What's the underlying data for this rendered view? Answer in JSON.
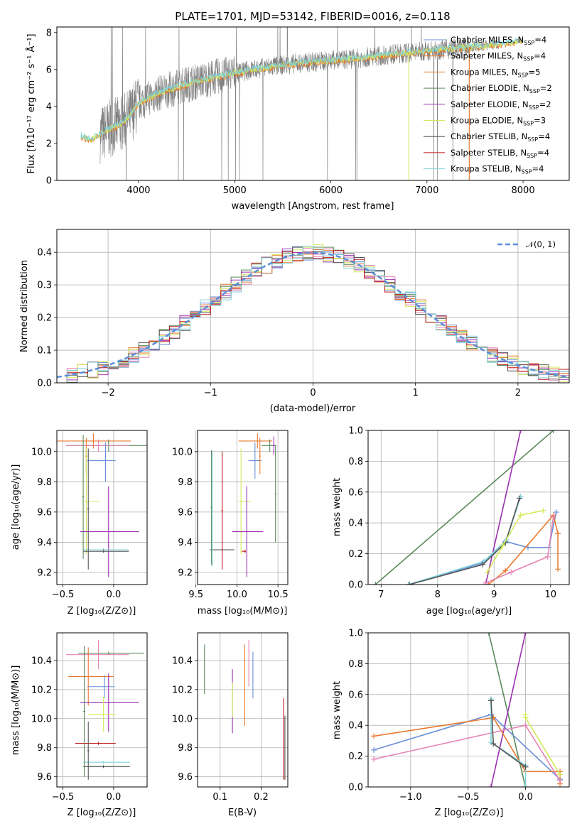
{
  "colors": {
    "chabrier_miles": "#6a8fd9",
    "salpeter_miles": "#e87a2f",
    "kroupa_miles": "#e87a2f",
    "chabrier_elodie": "#5b8a5b",
    "salpeter_elodie": "#9b30b0",
    "kroupa_elodie": "#d4e85a",
    "chabrier_stelib": "#555555",
    "salpeter_stelib": "#c01818",
    "kroupa_stelib": "#7fd3dc",
    "pink": "#e585b5",
    "data": "#808080",
    "normal": "#5b8ed6"
  },
  "chart_data": [
    {
      "id": "spectrum",
      "type": "line",
      "title": "PLATE=1701, MJD=53142, FIBERID=0016, z=0.118",
      "xlabel": "wavelength [Angstrom, rest frame]",
      "ylabel": "Flux [fλ10⁻¹⁷ erg cm⁻² s⁻¹ Å⁻¹]",
      "xlim": [
        3150,
        8480
      ],
      "ylim": [
        0,
        8.3
      ],
      "xticks": [
        4000,
        5000,
        6000,
        7000,
        8000
      ],
      "yticks": [
        0,
        2,
        4,
        6,
        8
      ],
      "legend_position": "upper right",
      "legend": [
        {
          "label": "Chabrier MILES, N_SSP=4",
          "color_key": "chabrier_miles"
        },
        {
          "label": "Salpeter MILES, N_SSP=4",
          "color_key": "salpeter_miles"
        },
        {
          "label": "Kroupa MILES, N_SSP=5",
          "color_key": "kroupa_miles"
        },
        {
          "label": "Chabrier ELODIE, N_SSP=2",
          "color_key": "chabrier_elodie"
        },
        {
          "label": "Salpeter ELODIE, N_SSP=2",
          "color_key": "salpeter_elodie"
        },
        {
          "label": "Kroupa ELODIE, N_SSP=3",
          "color_key": "kroupa_elodie"
        },
        {
          "label": "Chabrier STELIB, N_SSP=4",
          "color_key": "chabrier_stelib"
        },
        {
          "label": "Salpeter STELIB, N_SSP=4",
          "color_key": "salpeter_stelib"
        },
        {
          "label": "Kroupa STELIB, N_SSP=4",
          "color_key": "kroupa_stelib"
        }
      ],
      "continuum": {
        "x": [
          3400,
          3500,
          3600,
          3700,
          3800,
          3900,
          4000,
          4200,
          4500,
          4800,
          5000,
          5300,
          5600,
          6000,
          6300,
          6600,
          7000,
          7400,
          7800,
          8000
        ],
        "y": [
          2.4,
          2.2,
          2.5,
          2.8,
          3.0,
          3.4,
          4.2,
          4.7,
          5.2,
          5.6,
          5.8,
          6.1,
          6.3,
          6.5,
          6.6,
          6.8,
          7.0,
          7.2,
          7.4,
          7.6
        ]
      },
      "model_end": [
        3400,
        8000
      ],
      "data_range": [
        3600,
        7440
      ]
    },
    {
      "id": "residuals",
      "type": "bar",
      "xlabel": "(data-model)/error",
      "ylabel": "Normed distribution",
      "xlim": [
        -2.5,
        2.5
      ],
      "ylim": [
        0,
        0.47
      ],
      "xticks": [
        -2,
        -1,
        0,
        1,
        2
      ],
      "yticks": [
        0.0,
        0.1,
        0.2,
        0.3,
        0.4
      ],
      "legend": [
        {
          "label": "𝒩(0, 1)",
          "color_key": "normal"
        }
      ],
      "bin_width": 0.1,
      "bin_start": -2.5,
      "series_count": 9
    },
    {
      "id": "age_vs_Z",
      "type": "scatter",
      "xlabel": "Z [log₁₀(Z/Z⊙)]",
      "ylabel": "age  [log₁₀(age/yr)]",
      "xlim": [
        -0.56,
        0.33
      ],
      "ylim": [
        9.12,
        10.14
      ],
      "xticks": [
        -0.5,
        0.0
      ],
      "yticks": [
        9.2,
        9.4,
        9.6,
        9.8,
        10.0
      ],
      "points": [
        {
          "x": -0.2,
          "y": 10.07,
          "xerr": [
            0.42,
            0.37
          ],
          "yerr": [
            0.05,
            0.05
          ],
          "color_key": "salpeter_miles"
        },
        {
          "x": -0.05,
          "y": 10.04,
          "xerr": [
            0.42,
            0.38
          ],
          "yerr": [
            0.04,
            0.04
          ],
          "color_key": "chabrier_elodie"
        },
        {
          "x": -0.15,
          "y": 10.04,
          "xerr": [
            0.32,
            0.3
          ],
          "yerr": [
            0.04,
            0.04
          ],
          "color_key": "pink"
        },
        {
          "x": -0.08,
          "y": 9.94,
          "xerr": [
            0.18,
            0.1
          ],
          "yerr": [
            0.14,
            0.12
          ],
          "color_key": "chabrier_miles"
        },
        {
          "x": -0.27,
          "y": 9.97,
          "xerr": [
            0.01,
            0.01
          ],
          "yerr": [
            0.12,
            0.12
          ],
          "color_key": "kroupa_miles"
        },
        {
          "x": -0.27,
          "y": 9.67,
          "xerr": [
            0.02,
            0.13
          ],
          "yerr": [
            0.35,
            0.35
          ],
          "color_key": "kroupa_elodie"
        },
        {
          "x": -0.05,
          "y": 9.47,
          "xerr": [
            0.28,
            0.3
          ],
          "yerr": [
            0.3,
            0.3
          ],
          "color_key": "salpeter_elodie"
        },
        {
          "x": -0.1,
          "y": 9.35,
          "xerr": [
            0.2,
            0.25
          ],
          "yerr": [
            0.01,
            0.01
          ],
          "color_key": "kroupa_stelib"
        },
        {
          "x": -0.1,
          "y": 9.34,
          "xerr": [
            0.2,
            0.25
          ],
          "yerr": [
            0.01,
            0.01
          ],
          "color_key": "chabrier_stelib"
        },
        {
          "x": -0.3,
          "y": 9.7,
          "xerr": [
            0.01,
            0.01
          ],
          "yerr": [
            0.41,
            0.41
          ],
          "color_key": "chabrier_elodie"
        },
        {
          "x": -0.25,
          "y": 9.62,
          "xerr": [
            0.01,
            0.01
          ],
          "yerr": [
            0.4,
            0.4
          ],
          "color_key": "chabrier_stelib"
        }
      ]
    },
    {
      "id": "age_vs_mass",
      "type": "scatter",
      "xlabel": "mass [log₁₀(M/M⊙)]",
      "xlim": [
        9.52,
        10.62
      ],
      "ylim": [
        9.12,
        10.14
      ],
      "xticks": [
        9.5,
        10.0,
        10.5
      ],
      "yticks": [
        9.2,
        9.4,
        9.6,
        9.8,
        10.0
      ],
      "points": [
        {
          "x": 10.25,
          "y": 10.07,
          "xerr": [
            0.23,
            0.18
          ],
          "yerr": [
            0.05,
            0.05
          ],
          "color_key": "salpeter_miles"
        },
        {
          "x": 10.4,
          "y": 10.04,
          "xerr": [
            0.1,
            0.08
          ],
          "yerr": [
            0.04,
            0.04
          ],
          "color_key": "chabrier_elodie"
        },
        {
          "x": 10.45,
          "y": 10.04,
          "xerr": [
            0.01,
            0.01
          ],
          "yerr": [
            0.06,
            0.06
          ],
          "color_key": "salpeter_elodie"
        },
        {
          "x": 10.22,
          "y": 9.94,
          "xerr": [
            0.08,
            0.08
          ],
          "yerr": [
            0.12,
            0.12
          ],
          "color_key": "chabrier_miles"
        },
        {
          "x": 10.28,
          "y": 9.97,
          "xerr": [
            0.01,
            0.01
          ],
          "yerr": [
            0.12,
            0.12
          ],
          "color_key": "kroupa_miles"
        },
        {
          "x": 10.05,
          "y": 9.67,
          "xerr": [
            0.03,
            0.12
          ],
          "yerr": [
            0.35,
            0.35
          ],
          "color_key": "kroupa_elodie"
        },
        {
          "x": 10.12,
          "y": 9.47,
          "xerr": [
            0.18,
            0.2
          ],
          "yerr": [
            0.3,
            0.3
          ],
          "color_key": "salpeter_elodie"
        },
        {
          "x": 9.82,
          "y": 9.35,
          "xerr": [
            0.15,
            0.15
          ],
          "yerr": [
            0.01,
            0.01
          ],
          "color_key": "chabrier_stelib"
        },
        {
          "x": 9.69,
          "y": 9.63,
          "xerr": [
            0.01,
            0.01
          ],
          "yerr": [
            0.38,
            0.38
          ],
          "color_key": "chabrier_elodie"
        },
        {
          "x": 9.7,
          "y": 9.62,
          "xerr": [
            0.01,
            0.01
          ],
          "yerr": [
            0.38,
            0.38
          ],
          "color_key": "kroupa_stelib"
        },
        {
          "x": 9.82,
          "y": 9.61,
          "xerr": [
            0.01,
            0.01
          ],
          "yerr": [
            0.39,
            0.39
          ],
          "color_key": "salpeter_stelib"
        },
        {
          "x": 10.1,
          "y": 9.34,
          "xerr": [
            0.04,
            0.01
          ],
          "yerr": [
            0.01,
            0.01
          ],
          "color_key": "salpeter_stelib"
        },
        {
          "x": 10.47,
          "y": 9.72,
          "xerr": [
            0.01,
            0.01
          ],
          "yerr": [
            0.32,
            0.32
          ],
          "color_key": "chabrier_elodie"
        }
      ]
    },
    {
      "id": "weight_vs_age",
      "type": "line",
      "xlabel": "age  [log₁₀(age/yr)]",
      "ylabel": "mass weight",
      "xlim": [
        6.77,
        10.33
      ],
      "ylim": [
        0,
        1.0
      ],
      "xticks": [
        7,
        8,
        9,
        10
      ],
      "yticks": [
        0.0,
        0.2,
        0.4,
        0.6,
        0.8,
        1.0
      ],
      "series": [
        {
          "color_key": "chabrier_elodie",
          "x": [
            6.9,
            10.05
          ],
          "y": [
            0.0,
            1.0
          ]
        },
        {
          "color_key": "salpeter_elodie",
          "x": [
            8.85,
            9.47
          ],
          "y": [
            0.0,
            1.0
          ]
        },
        {
          "color_key": "chabrier_miles",
          "x": [
            7.5,
            8.8,
            9.2,
            9.6,
            9.97,
            10.1
          ],
          "y": [
            0.0,
            0.14,
            0.28,
            0.24,
            0.24,
            0.47
          ]
        },
        {
          "color_key": "kroupa_stelib",
          "x": [
            7.48,
            8.82,
            9.22,
            9.47
          ],
          "y": [
            0.0,
            0.15,
            0.29,
            0.57
          ]
        },
        {
          "color_key": "chabrier_stelib",
          "x": [
            7.5,
            8.8,
            9.2,
            9.45
          ],
          "y": [
            0.0,
            0.13,
            0.27,
            0.56
          ]
        },
        {
          "color_key": "kroupa_elodie",
          "x": [
            8.88,
            9.15,
            9.47,
            9.87
          ],
          "y": [
            0.08,
            0.25,
            0.45,
            0.48
          ]
        },
        {
          "color_key": "salpeter_miles",
          "x": [
            8.9,
            9.2,
            10.05,
            10.13,
            10.13
          ],
          "y": [
            0.0,
            0.09,
            0.45,
            0.33,
            0.1
          ]
        },
        {
          "color_key": "pink",
          "x": [
            8.85,
            9.3,
            9.95,
            10.05
          ],
          "y": [
            0.01,
            0.08,
            0.18,
            0.44
          ]
        }
      ]
    },
    {
      "id": "mass_vs_Z",
      "type": "scatter",
      "xlabel": "Z [log₁₀(Z/Z⊙)]",
      "ylabel": "mass [log₁₀(M/M⊙)]",
      "xlim": [
        -0.56,
        0.33
      ],
      "ylim": [
        9.53,
        10.59
      ],
      "xticks": [
        -0.5,
        0.0
      ],
      "yticks": [
        9.6,
        9.8,
        10.0,
        10.2,
        10.4
      ],
      "points": [
        {
          "x": -0.15,
          "y": 10.44,
          "xerr": [
            0.32,
            0.3
          ],
          "yerr": [
            0.1,
            0.1
          ],
          "color_key": "pink"
        },
        {
          "x": -0.05,
          "y": 10.45,
          "xerr": [
            0.3,
            0.35
          ],
          "yerr": [
            0.01,
            0.01
          ],
          "color_key": "chabrier_elodie"
        },
        {
          "x": -0.25,
          "y": 10.29,
          "xerr": [
            0.2,
            0.25
          ],
          "yerr": [
            0.2,
            0.2
          ],
          "color_key": "salpeter_miles"
        },
        {
          "x": -0.09,
          "y": 10.22,
          "xerr": [
            0.17,
            0.1
          ],
          "yerr": [
            0.08,
            0.08
          ],
          "color_key": "chabrier_miles"
        },
        {
          "x": -0.05,
          "y": 10.11,
          "xerr": [
            0.28,
            0.3
          ],
          "yerr": [
            0.2,
            0.2
          ],
          "color_key": "salpeter_elodie"
        },
        {
          "x": -0.1,
          "y": 10.03,
          "xerr": [
            0.15,
            0.12
          ],
          "yerr": [
            0.12,
            0.12
          ],
          "color_key": "kroupa_elodie"
        },
        {
          "x": -0.15,
          "y": 9.83,
          "xerr": [
            0.23,
            0.17
          ],
          "yerr": [
            0.01,
            0.01
          ],
          "color_key": "salpeter_stelib"
        },
        {
          "x": -0.1,
          "y": 9.7,
          "xerr": [
            0.2,
            0.26
          ],
          "yerr": [
            0.01,
            0.01
          ],
          "color_key": "kroupa_stelib"
        },
        {
          "x": -0.1,
          "y": 9.67,
          "xerr": [
            0.2,
            0.26
          ],
          "yerr": [
            0.01,
            0.01
          ],
          "color_key": "chabrier_stelib"
        },
        {
          "x": -0.29,
          "y": 10.05,
          "xerr": [
            0.01,
            0.01
          ],
          "yerr": [
            0.45,
            0.45
          ],
          "color_key": "chabrier_elodie"
        },
        {
          "x": -0.25,
          "y": 9.78,
          "xerr": [
            0.01,
            0.01
          ],
          "yerr": [
            0.2,
            0.2
          ],
          "color_key": "chabrier_stelib"
        }
      ]
    },
    {
      "id": "mass_vs_ebv",
      "type": "scatter",
      "xlabel": "E(B-V)",
      "xlim": [
        0.045,
        0.265
      ],
      "ylim": [
        9.53,
        10.59
      ],
      "xticks": [
        0.1,
        0.2
      ],
      "yticks": [
        9.6,
        9.8,
        10.0,
        10.2,
        10.4
      ],
      "points": [
        {
          "x": 0.062,
          "y": 10.34,
          "xerr": [
            0.0,
            0.0
          ],
          "yerr": [
            0.17,
            0.17
          ],
          "color_key": "chabrier_elodie"
        },
        {
          "x": 0.13,
          "y": 10.12,
          "xerr": [
            0.0,
            0.0
          ],
          "yerr": [
            0.22,
            0.22
          ],
          "color_key": "salpeter_elodie"
        },
        {
          "x": 0.13,
          "y": 10.13,
          "xerr": [
            0.0,
            0.0
          ],
          "yerr": [
            0.12,
            0.12
          ],
          "color_key": "kroupa_elodie"
        },
        {
          "x": 0.16,
          "y": 10.23,
          "xerr": [
            0.0,
            0.0
          ],
          "yerr": [
            0.28,
            0.28
          ],
          "color_key": "salpeter_miles"
        },
        {
          "x": 0.17,
          "y": 10.38,
          "xerr": [
            0.0,
            0.0
          ],
          "yerr": [
            0.16,
            0.16
          ],
          "color_key": "pink"
        },
        {
          "x": 0.18,
          "y": 10.3,
          "xerr": [
            0.0,
            0.0
          ],
          "yerr": [
            0.16,
            0.16
          ],
          "color_key": "chabrier_miles"
        },
        {
          "x": 0.255,
          "y": 9.86,
          "xerr": [
            0.0,
            0.0
          ],
          "yerr": [
            0.28,
            0.28
          ],
          "color_key": "salpeter_stelib"
        },
        {
          "x": 0.258,
          "y": 9.8,
          "xerr": [
            0.0,
            0.0
          ],
          "yerr": [
            0.22,
            0.22
          ],
          "color_key": "chabrier_stelib"
        }
      ]
    },
    {
      "id": "weight_vs_Z",
      "type": "line",
      "xlabel": "Z [log₁₀(Z/Z⊙)]",
      "ylabel": "mass weight",
      "xlim": [
        -1.37,
        0.38
      ],
      "ylim": [
        0,
        1.0
      ],
      "xticks": [
        -1.0,
        -0.5,
        0.0
      ],
      "yticks": [
        0.0,
        0.2,
        0.4,
        0.6,
        0.8,
        1.0
      ],
      "series": [
        {
          "color_key": "chabrier_elodie",
          "x": [
            -0.32,
            0.0
          ],
          "y": [
            1.0,
            0.0
          ]
        },
        {
          "color_key": "salpeter_elodie",
          "x": [
            -0.3,
            0.0
          ],
          "y": [
            0.0,
            1.0
          ]
        },
        {
          "color_key": "chabrier_miles",
          "x": [
            -1.32,
            -0.3,
            0.3
          ],
          "y": [
            0.24,
            0.47,
            0.05
          ]
        },
        {
          "color_key": "salpeter_miles",
          "x": [
            -1.32,
            -0.28,
            0.0,
            0.3,
            0.3
          ],
          "y": [
            0.33,
            0.45,
            0.1,
            0.1,
            0.02
          ]
        },
        {
          "color_key": "pink",
          "x": [
            -1.32,
            0.0,
            0.3
          ],
          "y": [
            0.18,
            0.4,
            0.04
          ]
        },
        {
          "color_key": "kroupa_elodie",
          "x": [
            0.0,
            0.0,
            0.3
          ],
          "y": [
            0.47,
            0.45,
            0.08
          ]
        },
        {
          "color_key": "kroupa_stelib",
          "x": [
            -0.3,
            -0.3,
            0.0,
            0.0
          ],
          "y": [
            0.57,
            0.29,
            0.14,
            0.0
          ]
        },
        {
          "color_key": "chabrier_stelib",
          "x": [
            -0.3,
            -0.28,
            0.0
          ],
          "y": [
            0.56,
            0.28,
            0.13
          ]
        }
      ]
    }
  ]
}
